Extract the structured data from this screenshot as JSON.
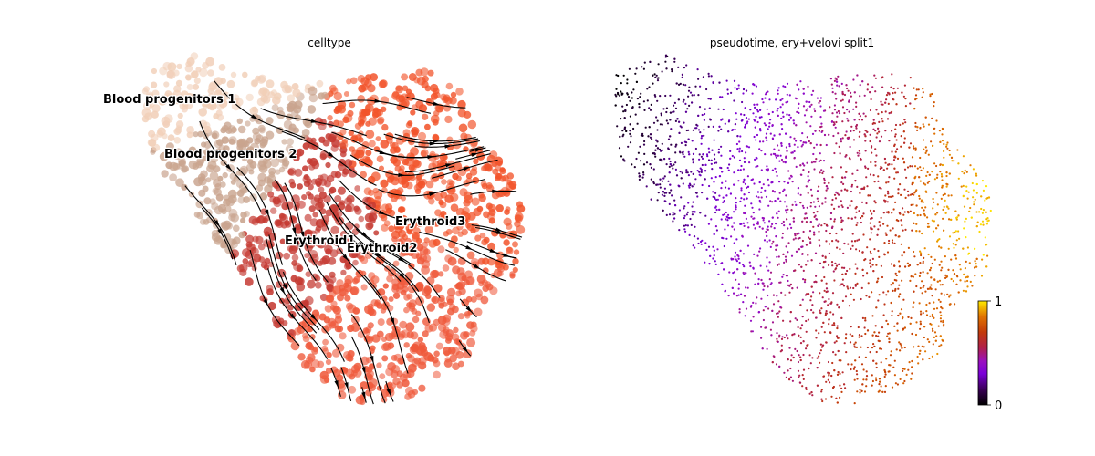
{
  "chart_data": [
    {
      "type": "scatter",
      "title": "celltype",
      "overlay": "velocity streamlines",
      "axes_visible": false,
      "grid": false,
      "legend": "on data",
      "series": [
        {
          "name": "Blood progenitors 1",
          "color": "#f1cfb8"
        },
        {
          "name": "Blood progenitors 2",
          "color": "#c9a48e"
        },
        {
          "name": "Erythroid1",
          "color": "#c53a32"
        },
        {
          "name": "Erythroid2",
          "color": "#ef5a3c"
        },
        {
          "name": "Erythroid3",
          "color": "#f2542b"
        }
      ]
    },
    {
      "type": "scatter",
      "title": "pseudotime, ery+velovi split1",
      "axes_visible": false,
      "grid": false,
      "colormap": "gnuplot",
      "colorbar": {
        "min_label": "0",
        "max_label": "1",
        "ticks": [
          0,
          1
        ],
        "position": "right"
      },
      "value_range": [
        0,
        1
      ]
    }
  ]
}
